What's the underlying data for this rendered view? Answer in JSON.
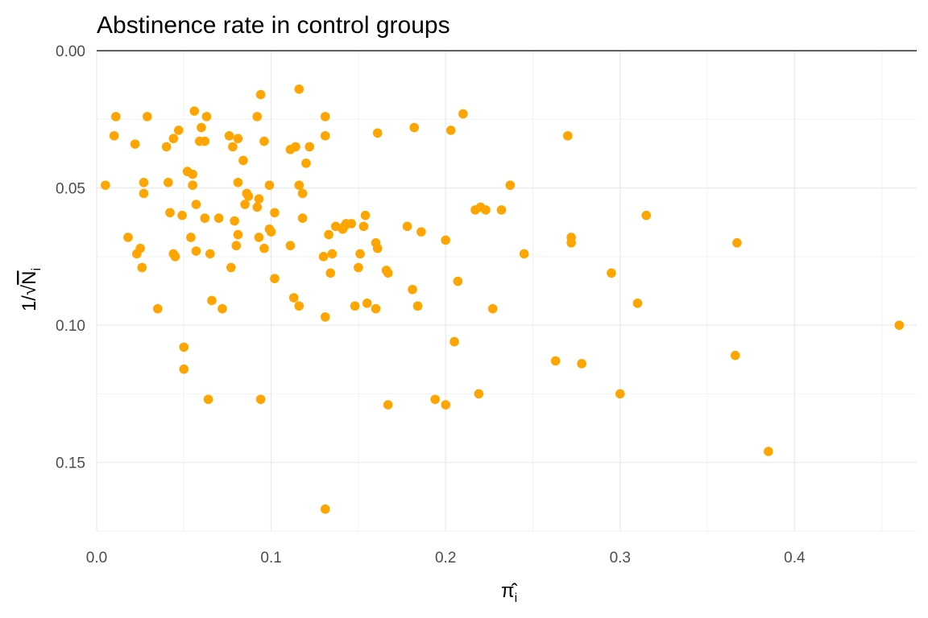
{
  "chart_data": {
    "type": "scatter",
    "title": "Abstinence rate in control groups",
    "xlabel": "π̂i",
    "ylabel": "1/√Ni",
    "xlim": [
      0,
      0.47
    ],
    "ylim": [
      0,
      0.175
    ],
    "y_reversed": true,
    "x_ticks": [
      0,
      0.1,
      0.2,
      0.3,
      0.4
    ],
    "x_tick_labels": [
      "0.0",
      "0.1",
      "0.2",
      "0.3",
      "0.4"
    ],
    "y_ticks": [
      0,
      0.05,
      0.1,
      0.15
    ],
    "y_tick_labels": [
      "0.00",
      "0.05",
      "0.10",
      "0.15"
    ],
    "grid": true,
    "point_color": "#FFA500",
    "points": [
      [
        0.005,
        0.049
      ],
      [
        0.01,
        0.031
      ],
      [
        0.011,
        0.024
      ],
      [
        0.018,
        0.068
      ],
      [
        0.022,
        0.034
      ],
      [
        0.023,
        0.074
      ],
      [
        0.025,
        0.072
      ],
      [
        0.026,
        0.079
      ],
      [
        0.027,
        0.048
      ],
      [
        0.027,
        0.052
      ],
      [
        0.029,
        0.024
      ],
      [
        0.035,
        0.094
      ],
      [
        0.04,
        0.035
      ],
      [
        0.041,
        0.048
      ],
      [
        0.042,
        0.059
      ],
      [
        0.044,
        0.032
      ],
      [
        0.044,
        0.074
      ],
      [
        0.045,
        0.075
      ],
      [
        0.047,
        0.029
      ],
      [
        0.049,
        0.06
      ],
      [
        0.05,
        0.108
      ],
      [
        0.05,
        0.116
      ],
      [
        0.052,
        0.044
      ],
      [
        0.054,
        0.068
      ],
      [
        0.055,
        0.045
      ],
      [
        0.055,
        0.049
      ],
      [
        0.056,
        0.022
      ],
      [
        0.057,
        0.056
      ],
      [
        0.057,
        0.073
      ],
      [
        0.059,
        0.033
      ],
      [
        0.06,
        0.028
      ],
      [
        0.062,
        0.033
      ],
      [
        0.062,
        0.061
      ],
      [
        0.063,
        0.024
      ],
      [
        0.064,
        0.127
      ],
      [
        0.065,
        0.074
      ],
      [
        0.066,
        0.091
      ],
      [
        0.07,
        0.061
      ],
      [
        0.072,
        0.094
      ],
      [
        0.076,
        0.031
      ],
      [
        0.077,
        0.079
      ],
      [
        0.078,
        0.035
      ],
      [
        0.079,
        0.062
      ],
      [
        0.08,
        0.071
      ],
      [
        0.081,
        0.048
      ],
      [
        0.081,
        0.067
      ],
      [
        0.081,
        0.032
      ],
      [
        0.084,
        0.04
      ],
      [
        0.085,
        0.056
      ],
      [
        0.086,
        0.052
      ],
      [
        0.087,
        0.053
      ],
      [
        0.092,
        0.024
      ],
      [
        0.092,
        0.057
      ],
      [
        0.093,
        0.054
      ],
      [
        0.093,
        0.068
      ],
      [
        0.094,
        0.016
      ],
      [
        0.094,
        0.127
      ],
      [
        0.096,
        0.072
      ],
      [
        0.096,
        0.033
      ],
      [
        0.099,
        0.049
      ],
      [
        0.099,
        0.065
      ],
      [
        0.1,
        0.066
      ],
      [
        0.102,
        0.059
      ],
      [
        0.102,
        0.083
      ],
      [
        0.111,
        0.036
      ],
      [
        0.111,
        0.071
      ],
      [
        0.113,
        0.09
      ],
      [
        0.114,
        0.035
      ],
      [
        0.116,
        0.014
      ],
      [
        0.116,
        0.049
      ],
      [
        0.116,
        0.093
      ],
      [
        0.118,
        0.052
      ],
      [
        0.118,
        0.061
      ],
      [
        0.12,
        0.041
      ],
      [
        0.122,
        0.035
      ],
      [
        0.13,
        0.075
      ],
      [
        0.131,
        0.031
      ],
      [
        0.131,
        0.024
      ],
      [
        0.131,
        0.097
      ],
      [
        0.131,
        0.167
      ],
      [
        0.133,
        0.067
      ],
      [
        0.134,
        0.081
      ],
      [
        0.135,
        0.074
      ],
      [
        0.137,
        0.064
      ],
      [
        0.141,
        0.065
      ],
      [
        0.142,
        0.064
      ],
      [
        0.143,
        0.063
      ],
      [
        0.146,
        0.063
      ],
      [
        0.148,
        0.093
      ],
      [
        0.15,
        0.079
      ],
      [
        0.151,
        0.074
      ],
      [
        0.153,
        0.064
      ],
      [
        0.154,
        0.06
      ],
      [
        0.155,
        0.092
      ],
      [
        0.16,
        0.07
      ],
      [
        0.16,
        0.094
      ],
      [
        0.161,
        0.03
      ],
      [
        0.161,
        0.072
      ],
      [
        0.166,
        0.08
      ],
      [
        0.167,
        0.081
      ],
      [
        0.167,
        0.129
      ],
      [
        0.178,
        0.064
      ],
      [
        0.181,
        0.087
      ],
      [
        0.182,
        0.028
      ],
      [
        0.184,
        0.093
      ],
      [
        0.186,
        0.066
      ],
      [
        0.194,
        0.127
      ],
      [
        0.2,
        0.069
      ],
      [
        0.2,
        0.129
      ],
      [
        0.203,
        0.029
      ],
      [
        0.205,
        0.106
      ],
      [
        0.207,
        0.084
      ],
      [
        0.21,
        0.023
      ],
      [
        0.217,
        0.058
      ],
      [
        0.219,
        0.125
      ],
      [
        0.22,
        0.057
      ],
      [
        0.223,
        0.058
      ],
      [
        0.227,
        0.094
      ],
      [
        0.232,
        0.058
      ],
      [
        0.237,
        0.049
      ],
      [
        0.245,
        0.074
      ],
      [
        0.263,
        0.113
      ],
      [
        0.27,
        0.031
      ],
      [
        0.272,
        0.068
      ],
      [
        0.272,
        0.07
      ],
      [
        0.278,
        0.114
      ],
      [
        0.295,
        0.081
      ],
      [
        0.3,
        0.125
      ],
      [
        0.31,
        0.092
      ],
      [
        0.315,
        0.06
      ],
      [
        0.366,
        0.111
      ],
      [
        0.367,
        0.07
      ],
      [
        0.385,
        0.146
      ],
      [
        0.46,
        0.1
      ]
    ]
  }
}
